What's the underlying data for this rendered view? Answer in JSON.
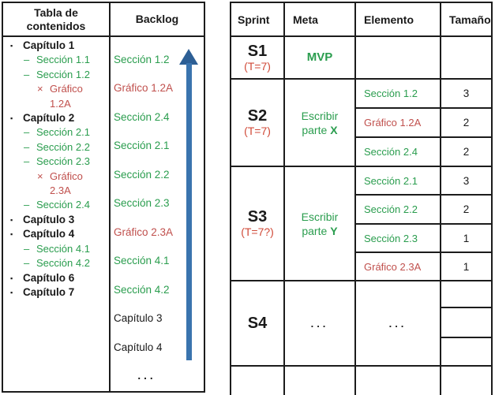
{
  "colors": {
    "green": "#2a9d4e",
    "red_item": "#c0504d",
    "red_time": "#d04a38",
    "arrow_blue": "#3a74ae",
    "arrow_blue_dark": "#2d5f95",
    "border": "#1c1c1c"
  },
  "toc": {
    "title_line1": "Tabla de",
    "title_line2": "contenidos",
    "marker_glyphs": {
      "chapter": "▪",
      "section": "–",
      "graphic": "×"
    },
    "items": [
      {
        "type": "chapter",
        "text": "Capítulo 1"
      },
      {
        "type": "section",
        "text": "Sección 1.1"
      },
      {
        "type": "section",
        "text": "Sección 1.2"
      },
      {
        "type": "graphic",
        "text": "Gráfico 1.2A"
      },
      {
        "type": "chapter",
        "text": "Capítulo 2"
      },
      {
        "type": "section",
        "text": "Sección 2.1"
      },
      {
        "type": "section",
        "text": "Sección 2.2"
      },
      {
        "type": "section",
        "text": "Sección 2.3"
      },
      {
        "type": "graphic",
        "text": "Gráfico 2.3A"
      },
      {
        "type": "section",
        "text": "Sección 2.4"
      },
      {
        "type": "chapter",
        "text": "Capítulo 3"
      },
      {
        "type": "chapter",
        "text": "Capítulo 4"
      },
      {
        "type": "section",
        "text": "Sección 4.1"
      },
      {
        "type": "section",
        "text": "Sección 4.2"
      },
      {
        "type": "chapter",
        "text": "Capítulo 6"
      },
      {
        "type": "chapter",
        "text": "Capítulo 7"
      }
    ]
  },
  "backlog": {
    "title": "Backlog",
    "items": [
      {
        "type": "section",
        "text": "Sección 1.2"
      },
      {
        "type": "graphic",
        "text": "Gráfico 1.2A"
      },
      {
        "type": "section",
        "text": "Sección 2.4"
      },
      {
        "type": "section",
        "text": "Sección 2.1"
      },
      {
        "type": "section",
        "text": "Sección 2.2"
      },
      {
        "type": "section",
        "text": "Sección 2.3"
      },
      {
        "type": "graphic",
        "text": "Gráfico 2.3A"
      },
      {
        "type": "section",
        "text": "Sección 4.1"
      },
      {
        "type": "section",
        "text": "Sección 4.2"
      },
      {
        "type": "chapter",
        "text": "Capítulo 3"
      },
      {
        "type": "chapter",
        "text": "Capítulo 4"
      },
      {
        "type": "ellipsis",
        "text": "..."
      }
    ]
  },
  "sprint_table": {
    "headers": {
      "sprint": "Sprint",
      "meta": "Meta",
      "elemento": "Elemento",
      "tamano": "Tamaño"
    },
    "s1": {
      "id": "S1",
      "time": "(T=7)",
      "meta": "MVP"
    },
    "s2": {
      "id": "S2",
      "time": "(T=7)",
      "meta_line1": "Escribir",
      "meta_line2": "parte",
      "meta_bold": "X",
      "items": [
        {
          "name": "Sección 1.2",
          "type": "section",
          "size": "3"
        },
        {
          "name": "Gráfico 1.2A",
          "type": "graphic",
          "size": "2"
        },
        {
          "name": "Sección 2.4",
          "type": "section",
          "size": "2"
        }
      ]
    },
    "s3": {
      "id": "S3",
      "time": "(T=7?)",
      "meta_line1": "Escribir",
      "meta_line2": "parte",
      "meta_bold": "Y",
      "items": [
        {
          "name": "Sección 2.1",
          "type": "section",
          "size": "3"
        },
        {
          "name": "Sección 2.2",
          "type": "section",
          "size": "2"
        },
        {
          "name": "Sección 2.3",
          "type": "section",
          "size": "1"
        },
        {
          "name": "Gráfico 2.3A",
          "type": "graphic",
          "size": "1"
        }
      ]
    },
    "s4": {
      "id": "S4",
      "meta_ellipsis": "...",
      "elemento_ellipsis": "..."
    }
  }
}
